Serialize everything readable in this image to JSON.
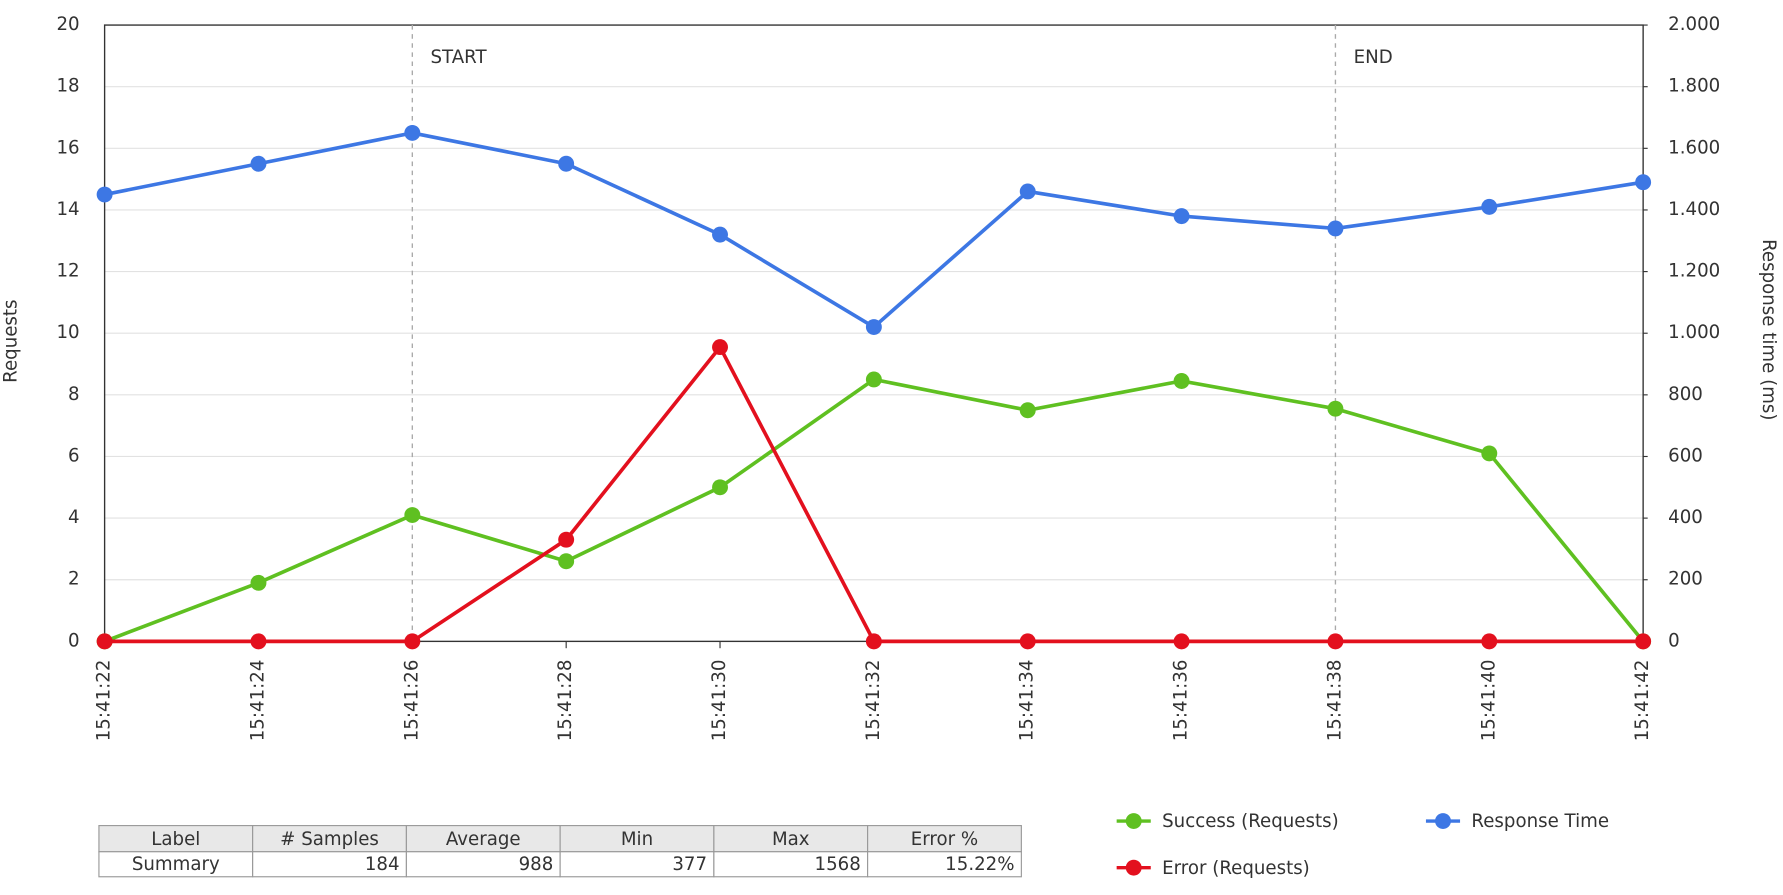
{
  "chart_data": {
    "type": "line",
    "x": [
      "15:41:22",
      "15:41:24",
      "15:41:26",
      "15:41:28",
      "15:41:30",
      "15:41:32",
      "15:41:34",
      "15:41:36",
      "15:41:38",
      "15:41:40",
      "15:41:42"
    ],
    "series": [
      {
        "name": "Success (Requests)",
        "color": "#5fc021",
        "values": [
          0,
          1.9,
          4.1,
          2.6,
          5.0,
          8.5,
          7.5,
          8.45,
          7.55,
          6.1,
          0
        ]
      },
      {
        "name": "Response Time",
        "color": "#3d77e4",
        "axis": "y2",
        "values": [
          1450,
          1550,
          1650,
          1550,
          1320,
          1020,
          1460,
          1380,
          1340,
          1410,
          1490
        ]
      },
      {
        "name": "Error (Requests)",
        "color": "#e3101e",
        "values": [
          0,
          0,
          0,
          3.3,
          9.55,
          0,
          0,
          0,
          0,
          0,
          0
        ]
      }
    ],
    "ylabel": "Requests",
    "y2label": "Response time (ms)",
    "ylim": [
      0,
      20
    ],
    "yticks": [
      0,
      2,
      4,
      6,
      8,
      10,
      12,
      14,
      16,
      18,
      20
    ],
    "y2lim": [
      0,
      2000
    ],
    "y2ticks": [
      0,
      {
        "value": 200,
        "label": "200"
      },
      {
        "value": 400,
        "label": "400"
      },
      {
        "value": 600,
        "label": "600"
      },
      {
        "value": 800,
        "label": "800"
      },
      {
        "value": 1000,
        "label": "1.000"
      },
      {
        "value": 1200,
        "label": "1.200"
      },
      {
        "value": 1400,
        "label": "1.400"
      },
      {
        "value": 1600,
        "label": "1.600"
      },
      {
        "value": 1800,
        "label": "1.800"
      },
      {
        "value": 2000,
        "label": "2.000"
      }
    ],
    "grid": true,
    "annotations": [
      {
        "x": "15:41:26",
        "label": "START"
      },
      {
        "x": "15:41:38",
        "label": "END"
      }
    ]
  },
  "table": {
    "columns": [
      "Label",
      "# Samples",
      "Average",
      "Min",
      "Max",
      "Error %"
    ],
    "rows": [
      [
        "Summary",
        184,
        988,
        377,
        1568,
        "15.22%"
      ]
    ]
  }
}
